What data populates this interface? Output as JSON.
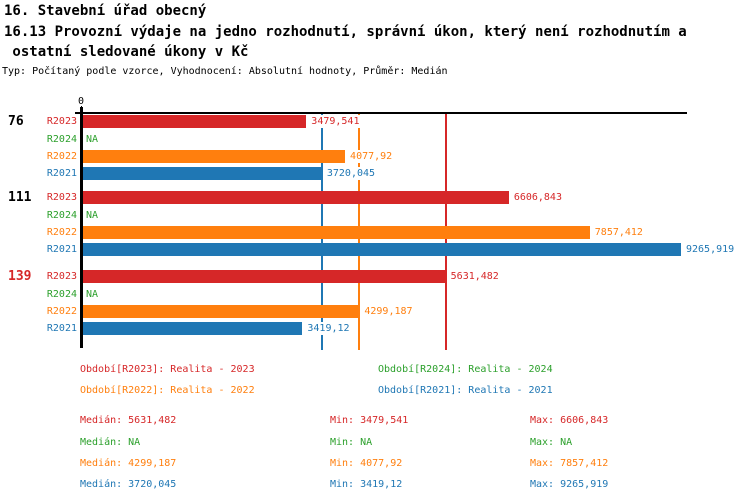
{
  "header": {
    "title_line1": "16. Stavební úřad obecný",
    "title_line2": "16.13 Provozní výdaje na jedno rozhodnutí, správní úkon, který není rozhodnutím a",
    "title_line3": " ostatní sledované úkony v Kč",
    "subtitle": "Typ: Počítaný podle vzorce, Vyhodnocení: Absolutní hodnoty, Průměr: Medián"
  },
  "chart_data": {
    "type": "bar",
    "orientation": "horizontal",
    "unit": "Kč",
    "x_axis": {
      "zero_label": "0",
      "min": 0,
      "max": 9265.919,
      "grid": false
    },
    "series_order": [
      "R2023",
      "R2024",
      "R2022",
      "R2021"
    ],
    "series_colors": {
      "R2023": "#d62728",
      "R2024": "#2ca02c",
      "R2022": "#ff7f0e",
      "R2021": "#1f77b4"
    },
    "groups": [
      {
        "label": "76",
        "label_color": "#000000",
        "bars": [
          {
            "series": "R2023",
            "value": 3479.541,
            "label": "3479,541"
          },
          {
            "series": "R2024",
            "value": null,
            "label": "NA"
          },
          {
            "series": "R2022",
            "value": 4077.92,
            "label": "4077,92"
          },
          {
            "series": "R2021",
            "value": 3720.045,
            "label": "3720,045"
          }
        ]
      },
      {
        "label": "111",
        "label_color": "#000000",
        "bars": [
          {
            "series": "R2023",
            "value": 6606.843,
            "label": "6606,843"
          },
          {
            "series": "R2024",
            "value": null,
            "label": "NA"
          },
          {
            "series": "R2022",
            "value": 7857.412,
            "label": "7857,412"
          },
          {
            "series": "R2021",
            "value": 9265.919,
            "label": "9265,919"
          }
        ]
      },
      {
        "label": "139",
        "label_color": "#d62728",
        "bars": [
          {
            "series": "R2023",
            "value": 5631.482,
            "label": "5631,482"
          },
          {
            "series": "R2024",
            "value": null,
            "label": "NA"
          },
          {
            "series": "R2022",
            "value": 4299.187,
            "label": "4299,187"
          },
          {
            "series": "R2021",
            "value": 3419.12,
            "label": "3419,12"
          }
        ]
      }
    ],
    "median_lines": [
      {
        "series": "R2021",
        "value": 3720.045
      },
      {
        "series": "R2022",
        "value": 4299.187
      },
      {
        "series": "R2023",
        "value": 5631.482
      }
    ]
  },
  "legend": {
    "items": [
      {
        "series": "R2023",
        "text": "Období[R2023]: Realita - 2023"
      },
      {
        "series": "R2024",
        "text": "Období[R2024]: Realita - 2024"
      },
      {
        "series": "R2022",
        "text": "Období[R2022]: Realita - 2022"
      },
      {
        "series": "R2021",
        "text": "Období[R2021]: Realita - 2021"
      }
    ]
  },
  "stats": {
    "rows": [
      {
        "series": "R2023",
        "median": "Medián: 5631,482",
        "min": "Min: 3479,541",
        "max": "Max: 6606,843"
      },
      {
        "series": "R2024",
        "median": "Medián: NA",
        "min": "Min: NA",
        "max": "Max: NA"
      },
      {
        "series": "R2022",
        "median": "Medián: 4299,187",
        "min": "Min: 4077,92",
        "max": "Max: 7857,412"
      },
      {
        "series": "R2021",
        "median": "Medián: 3720,045",
        "min": "Min: 3419,12",
        "max": "Max: 9265,919"
      }
    ]
  }
}
